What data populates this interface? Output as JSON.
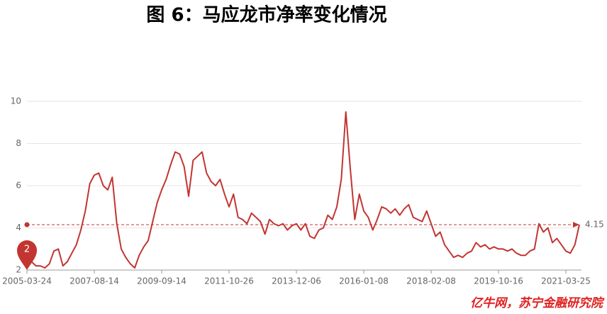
{
  "chart_data": {
    "type": "line",
    "title": "图 6：马应龙市净率变化情况",
    "watermark": "亿牛网，苏宁金融研究院",
    "categories": [
      "2005-03-24",
      null,
      null,
      null,
      null,
      null,
      null,
      null,
      null,
      null,
      null,
      null,
      null,
      null,
      null,
      "2007-08-14",
      null,
      null,
      null,
      null,
      null,
      null,
      null,
      null,
      null,
      null,
      null,
      null,
      null,
      null,
      "2009-09-14",
      null,
      null,
      null,
      null,
      null,
      null,
      null,
      null,
      null,
      null,
      null,
      null,
      null,
      null,
      "2011-10-26",
      null,
      null,
      null,
      null,
      null,
      null,
      null,
      null,
      null,
      null,
      null,
      null,
      null,
      null,
      "2013-12-06",
      null,
      null,
      null,
      null,
      null,
      null,
      null,
      null,
      null,
      null,
      null,
      null,
      null,
      null,
      "2016-01-08",
      null,
      null,
      null,
      null,
      null,
      null,
      null,
      null,
      null,
      null,
      null,
      null,
      null,
      null,
      "2018-02-08",
      null,
      null,
      null,
      null,
      null,
      null,
      null,
      null,
      null,
      null,
      null,
      null,
      null,
      null,
      "2019-10-16",
      null,
      null,
      null,
      null,
      null,
      null,
      null,
      null,
      null,
      null,
      null,
      null,
      null,
      null,
      "2021-03-25",
      null,
      null,
      null
    ],
    "series": [
      {
        "name": "市净率",
        "color": "#c23531",
        "values": [
          2.6,
          2.4,
          2.2,
          2.2,
          2.1,
          2.3,
          2.9,
          3.0,
          2.2,
          2.4,
          2.8,
          3.2,
          3.9,
          4.8,
          6.1,
          6.5,
          6.6,
          6.0,
          5.8,
          6.4,
          4.2,
          3.0,
          2.6,
          2.3,
          2.1,
          2.7,
          3.1,
          3.4,
          4.3,
          5.2,
          5.8,
          6.3,
          7.0,
          7.6,
          7.5,
          6.9,
          5.5,
          7.2,
          7.4,
          7.6,
          6.6,
          6.2,
          6.0,
          6.3,
          5.6,
          5.0,
          5.6,
          4.5,
          4.4,
          4.2,
          4.7,
          4.5,
          4.3,
          3.7,
          4.4,
          4.2,
          4.1,
          4.2,
          3.9,
          4.1,
          4.2,
          3.9,
          4.2,
          3.6,
          3.5,
          3.9,
          4.0,
          4.6,
          4.4,
          5.0,
          6.3,
          9.5,
          6.8,
          4.4,
          5.6,
          4.8,
          4.5,
          3.9,
          4.4,
          5.0,
          4.9,
          4.7,
          4.9,
          4.6,
          4.9,
          5.1,
          4.5,
          4.4,
          4.3,
          4.8,
          4.2,
          3.6,
          3.8,
          3.2,
          2.9,
          2.6,
          2.7,
          2.6,
          2.8,
          2.9,
          3.3,
          3.1,
          3.2,
          3.0,
          3.1,
          3.0,
          3.0,
          2.9,
          3.0,
          2.8,
          2.7,
          2.7,
          2.9,
          3.0,
          4.2,
          3.8,
          4.0,
          3.3,
          3.5,
          3.2,
          2.9,
          2.8,
          3.2,
          4.15
        ]
      }
    ],
    "ylim": [
      2,
      10
    ],
    "yticks": [
      2,
      4,
      6,
      8,
      10
    ],
    "grid": true,
    "mark_line": 4.15,
    "min_marker": 2
  }
}
